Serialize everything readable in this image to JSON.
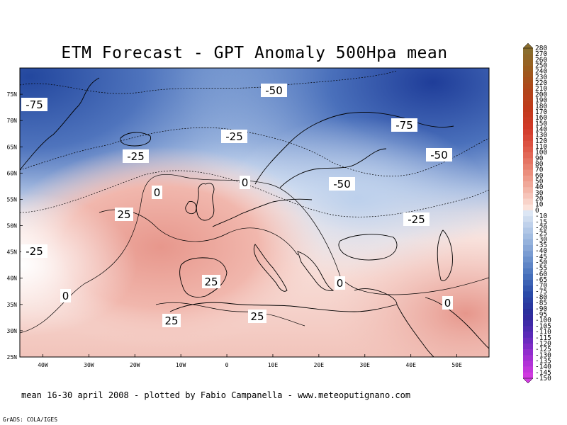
{
  "title": "ETM Forecast - GPT Anomaly 500Hpa mean",
  "footer": "mean 16-30 april 2008 - plotted by Fabio Campanella - www.meteoputignano.com",
  "credit": "GrADS: COLA/IGES",
  "axes": {
    "lat_labels": [
      "75N",
      "70N",
      "65N",
      "60N",
      "55N",
      "50N",
      "45N",
      "40N",
      "35N",
      "30N",
      "25N"
    ],
    "lat_values": [
      75,
      70,
      65,
      60,
      55,
      50,
      45,
      40,
      35,
      30,
      25
    ],
    "lon_labels": [
      "40W",
      "30W",
      "20W",
      "10W",
      "0",
      "10E",
      "20E",
      "30E",
      "40E",
      "50E"
    ],
    "lon_values": [
      -40,
      -30,
      -20,
      -10,
      0,
      10,
      20,
      30,
      40,
      50
    ],
    "lon_range": [
      -45,
      57
    ],
    "lat_range": [
      25,
      80
    ]
  },
  "contour_labels": [
    "-50",
    "-75",
    "-25",
    "-75",
    "-50",
    "-25",
    "0",
    "0",
    "-50",
    "25",
    "-25",
    "-25",
    "0",
    "25",
    "0",
    "0",
    "25",
    "25"
  ],
  "colorbar": {
    "levels": [
      "280",
      "270",
      "260",
      "250",
      "240",
      "230",
      "220",
      "210",
      "200",
      "190",
      "180",
      "170",
      "160",
      "150",
      "140",
      "130",
      "120",
      "110",
      "100",
      "90",
      "80",
      "70",
      "60",
      "50",
      "40",
      "30",
      "20",
      "10",
      "0",
      "-10",
      "-15",
      "-20",
      "-25",
      "-30",
      "-35",
      "-40",
      "-45",
      "-50",
      "-55",
      "-60",
      "-65",
      "-70",
      "-75",
      "-80",
      "-85",
      "-90",
      "-95",
      "-100",
      "-105",
      "-110",
      "-115",
      "-120",
      "-125",
      "-130",
      "-135",
      "-140",
      "-145",
      "-150"
    ],
    "colors_top": [
      "#8a6d2e",
      "#9c5a1c",
      "#b0451a",
      "#c23a1c",
      "#d23a2a",
      "#df5a4a",
      "#e98472",
      "#f2b0a2",
      "#fbe2da"
    ],
    "colors_bottom": [
      "#dce6f4",
      "#aac2e4",
      "#7a9cd2",
      "#4a74bd",
      "#2a4aa8",
      "#2a2a9a",
      "#5a2ab8",
      "#9a2ed0",
      "#d03ae0"
    ]
  }
}
